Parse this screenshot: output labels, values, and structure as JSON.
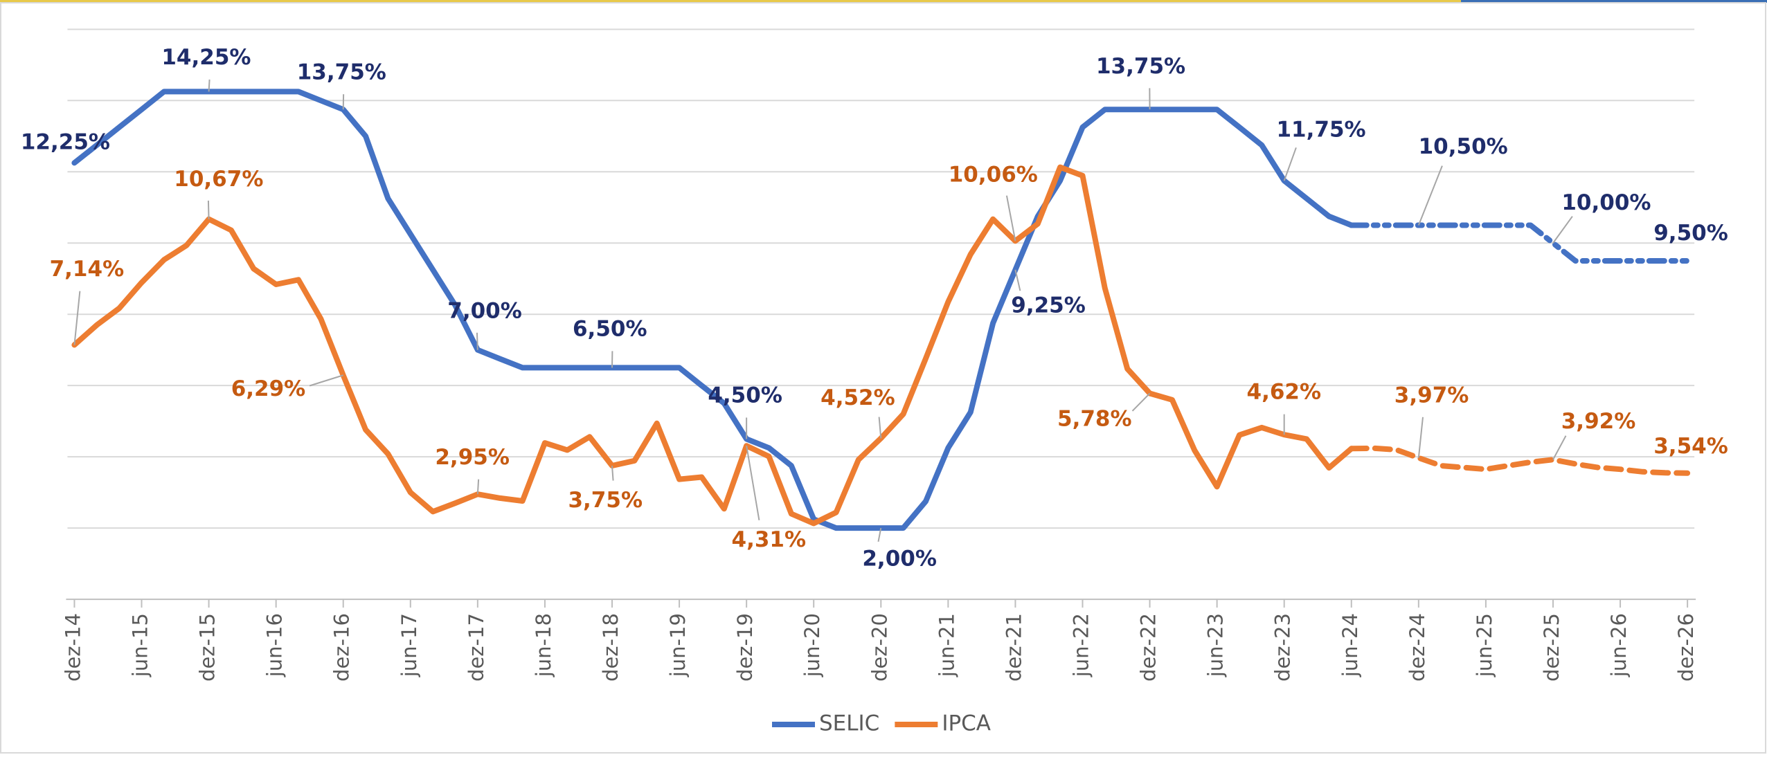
{
  "chart_data": {
    "type": "line",
    "categories": [
      "dez-14",
      null,
      null,
      "jun-15",
      null,
      null,
      "dez-15",
      null,
      null,
      "jun-16",
      null,
      null,
      "dez-16",
      null,
      null,
      "jun-17",
      null,
      null,
      "dez-17",
      null,
      null,
      "jun-18",
      null,
      null,
      "dez-18",
      null,
      null,
      "jun-19",
      null,
      null,
      "dez-19",
      null,
      null,
      "jun-20",
      null,
      null,
      "dez-20",
      null,
      null,
      "jun-21",
      null,
      null,
      "dez-21",
      null,
      null,
      "jun-22",
      null,
      null,
      "dez-22",
      null,
      null,
      "jun-23",
      null,
      null,
      "dez-23",
      null,
      null,
      "jun-24",
      null,
      null,
      "dez-24",
      null,
      null,
      "jun-25",
      null,
      null,
      "dez-25",
      null,
      null,
      "jun-26",
      null,
      null,
      "dez-26"
    ],
    "forecast_from": "jun-24",
    "ylim": [
      0,
      16
    ],
    "yticks": [
      0,
      2,
      4,
      6,
      8,
      10,
      12,
      14,
      16
    ],
    "grid": true,
    "legend": "bottom",
    "series": [
      {
        "name": "SELIC",
        "color": "#4472c4",
        "label_color": "#1f2d6b",
        "values": [
          12.25,
          12.75,
          13.25,
          13.75,
          14.25,
          14.25,
          14.25,
          14.25,
          14.25,
          14.25,
          14.25,
          14.0,
          13.75,
          13.0,
          11.25,
          10.25,
          9.25,
          8.25,
          7.0,
          6.75,
          6.5,
          6.5,
          6.5,
          6.5,
          6.5,
          6.5,
          6.5,
          6.5,
          6.0,
          5.5,
          4.5,
          4.25,
          3.75,
          2.25,
          2.0,
          2.0,
          2.0,
          2.0,
          2.75,
          4.25,
          5.25,
          7.75,
          9.25,
          10.75,
          11.75,
          13.25,
          13.75,
          13.75,
          13.75,
          13.75,
          13.75,
          13.75,
          13.25,
          12.75,
          11.75,
          11.25,
          10.75,
          10.5,
          10.5,
          10.5,
          10.5,
          10.5,
          10.5,
          10.5,
          10.5,
          10.5,
          10.0,
          9.5,
          9.5,
          9.5,
          9.5,
          9.5,
          9.5
        ],
        "value_labels": [
          "12,25%",
          null,
          null,
          null,
          null,
          null,
          "14,25%",
          null,
          null,
          null,
          null,
          null,
          "13,75%",
          null,
          null,
          null,
          null,
          null,
          "7,00%",
          null,
          null,
          null,
          null,
          null,
          "6,50%",
          null,
          null,
          null,
          null,
          null,
          "4,50%",
          null,
          null,
          null,
          null,
          null,
          "2,00%",
          null,
          null,
          null,
          null,
          null,
          "9,25%",
          null,
          null,
          null,
          null,
          null,
          "13,75%",
          null,
          null,
          null,
          null,
          null,
          "11,75%",
          null,
          null,
          null,
          null,
          null,
          "10,50%",
          null,
          null,
          null,
          null,
          null,
          "10,00%",
          null,
          null,
          null,
          null,
          null,
          "9,50%"
        ]
      },
      {
        "name": "IPCA",
        "color": "#ed7d31",
        "label_color": "#c55a11",
        "values": [
          7.14,
          7.7,
          8.17,
          8.89,
          9.53,
          9.93,
          10.67,
          10.36,
          9.28,
          8.84,
          8.97,
          7.87,
          6.29,
          4.76,
          4.08,
          3.0,
          2.46,
          2.7,
          2.95,
          2.84,
          2.76,
          4.39,
          4.19,
          4.56,
          3.75,
          3.89,
          4.94,
          3.37,
          3.43,
          2.54,
          4.31,
          4.01,
          2.4,
          2.13,
          2.44,
          3.92,
          4.52,
          5.2,
          6.76,
          8.35,
          9.68,
          10.67,
          10.06,
          10.54,
          12.13,
          11.89,
          8.73,
          6.47,
          5.78,
          5.6,
          4.18,
          3.16,
          4.61,
          4.82,
          4.62,
          4.5,
          3.69,
          4.23,
          4.24,
          4.2,
          3.97,
          3.75,
          3.7,
          3.65,
          3.75,
          3.85,
          3.92,
          3.8,
          3.7,
          3.65,
          3.58,
          3.55,
          3.54
        ],
        "value_labels": [
          "7,14%",
          null,
          null,
          null,
          null,
          null,
          "10,67%",
          null,
          null,
          null,
          null,
          null,
          "6,29%",
          null,
          null,
          null,
          null,
          null,
          "2,95%",
          null,
          null,
          null,
          null,
          null,
          "3,75%",
          null,
          null,
          null,
          null,
          null,
          "4,31%",
          null,
          null,
          null,
          null,
          null,
          "4,52%",
          null,
          null,
          null,
          null,
          null,
          "10,06%",
          null,
          null,
          null,
          null,
          null,
          "5,78%",
          null,
          null,
          null,
          null,
          null,
          "4,62%",
          null,
          null,
          null,
          null,
          null,
          "3,97%",
          null,
          null,
          null,
          null,
          null,
          "3,92%",
          null,
          null,
          null,
          null,
          null,
          "3,54%"
        ]
      }
    ]
  }
}
